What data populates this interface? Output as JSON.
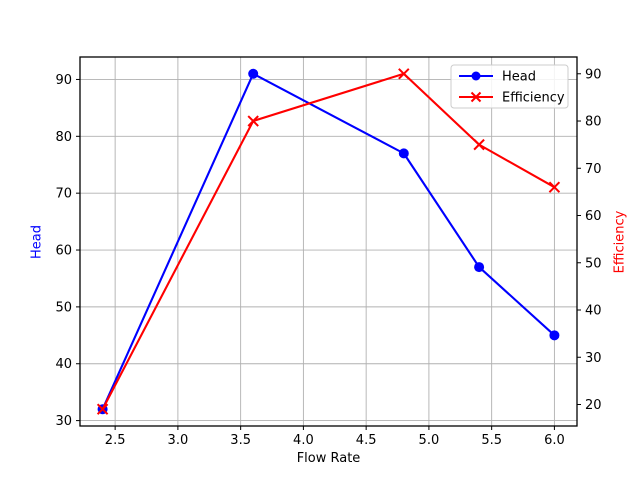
{
  "chart_data": {
    "type": "line",
    "title": "",
    "xlabel": "Flow Rate",
    "ylabel_left": "Head",
    "ylabel_right": "Efficiency",
    "x": [
      2.4,
      3.6,
      4.8,
      5.4,
      6.0
    ],
    "series": [
      {
        "name": "Head",
        "axis": "left",
        "color": "#0000ff",
        "marker": "circle",
        "values": [
          32,
          91,
          77,
          57,
          45
        ]
      },
      {
        "name": "Efficiency",
        "axis": "right",
        "color": "#ff0000",
        "marker": "x",
        "values": [
          19,
          80,
          90,
          75,
          66
        ]
      }
    ],
    "x_ticks": [
      2.5,
      3.0,
      3.5,
      4.0,
      4.5,
      5.0,
      5.5,
      6.0
    ],
    "left_ticks": [
      30,
      40,
      50,
      60,
      70,
      80,
      90
    ],
    "right_ticks": [
      20,
      30,
      40,
      50,
      60,
      70,
      80,
      90
    ],
    "xlim": [
      2.22,
      6.18
    ],
    "ylim_left": [
      29.05,
      93.95
    ],
    "ylim_right": [
      15.45,
      93.55
    ],
    "grid": true,
    "legend_position": "upper right",
    "colors": {
      "head": "#0000ff",
      "efficiency": "#ff0000",
      "grid": "#b0b0b0",
      "spine": "#000000",
      "tick_label": "#000000",
      "legend_border": "#cccccc",
      "background": "#ffffff"
    }
  }
}
